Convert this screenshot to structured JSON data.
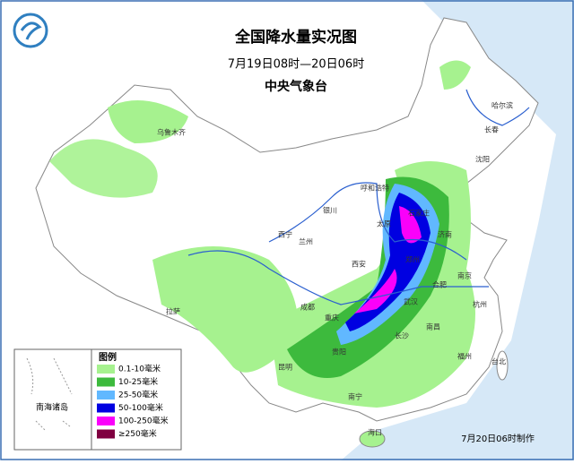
{
  "header": {
    "title": "全国降水量实况图",
    "period": "7月19日08时—20日06时",
    "agency": "中央气象台"
  },
  "legend": {
    "title": "图例",
    "items": [
      {
        "label": "0.1-10毫米",
        "color": "#a6f28f"
      },
      {
        "label": "10-25毫米",
        "color": "#3dba3d"
      },
      {
        "label": "25-50毫米",
        "color": "#61b8ff"
      },
      {
        "label": "50-100毫米",
        "color": "#0000e1"
      },
      {
        "label": "100-250毫米",
        "color": "#fa00fa"
      },
      {
        "label": "≥250毫米",
        "color": "#800040"
      }
    ]
  },
  "inset": {
    "label": "南海诸岛"
  },
  "cities": [
    "乌鲁木齐",
    "哈尔滨",
    "长春",
    "沈阳",
    "呼和浩特",
    "银川",
    "西宁",
    "兰州",
    "西安",
    "太原",
    "石家庄",
    "郑州",
    "济南",
    "合肥",
    "南京",
    "杭州",
    "武汉",
    "南昌",
    "长沙",
    "重庆",
    "成都",
    "贵阳",
    "昆明",
    "南宁",
    "福州",
    "台北",
    "海口",
    "拉萨"
  ],
  "footer": {
    "note": "7月20日06时制作"
  }
}
